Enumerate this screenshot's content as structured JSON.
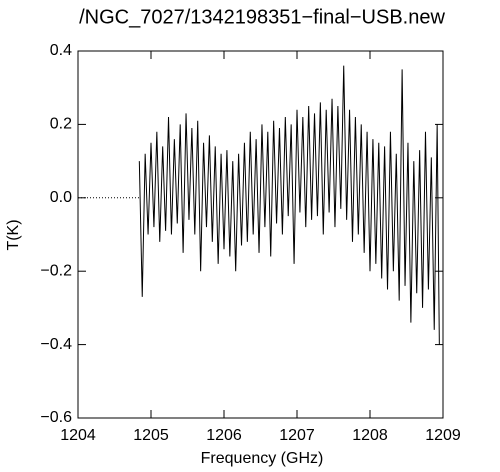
{
  "chart_data": {
    "type": "line",
    "title": "/NGC_7027/1342198351−final−USB.new",
    "x_label": "Frequency (GHz)",
    "y_label": "T(K)",
    "xlim": [
      1204,
      1209
    ],
    "ylim": [
      -0.6,
      0.4
    ],
    "xticks": [
      1204,
      1205,
      1206,
      1207,
      1208,
      1209
    ],
    "yticks": [
      {
        "value": -0.6,
        "label": "−0.6"
      },
      {
        "value": -0.4,
        "label": "−0.4"
      },
      {
        "value": -0.2,
        "label": "−0.2"
      },
      {
        "value": 0,
        "label": "0.0"
      },
      0.2,
      0.4
    ],
    "series": [
      {
        "color": "#000000",
        "style": "solid",
        "x": [
          1204.84,
          1204.88,
          1204.92,
          1204.96,
          1205.0,
          1205.04,
          1205.08,
          1205.12,
          1205.16,
          1205.2,
          1205.24,
          1205.28,
          1205.32,
          1205.36,
          1205.4,
          1205.44,
          1205.48,
          1205.52,
          1205.56,
          1205.6,
          1205.64,
          1205.68,
          1205.72,
          1205.76,
          1205.8,
          1205.84,
          1205.88,
          1205.92,
          1205.96,
          1206.0,
          1206.04,
          1206.08,
          1206.12,
          1206.16,
          1206.2,
          1206.24,
          1206.28,
          1206.32,
          1206.36,
          1206.4,
          1206.44,
          1206.48,
          1206.52,
          1206.56,
          1206.6,
          1206.64,
          1206.68,
          1206.72,
          1206.76,
          1206.8,
          1206.84,
          1206.88,
          1206.92,
          1206.96,
          1207.0,
          1207.04,
          1207.08,
          1207.12,
          1207.16,
          1207.2,
          1207.24,
          1207.28,
          1207.32,
          1207.36,
          1207.4,
          1207.44,
          1207.48,
          1207.52,
          1207.56,
          1207.6,
          1207.64,
          1207.68,
          1207.72,
          1207.76,
          1207.8,
          1207.84,
          1207.88,
          1207.92,
          1207.96,
          1208.0,
          1208.04,
          1208.08,
          1208.12,
          1208.16,
          1208.2,
          1208.24,
          1208.28,
          1208.32,
          1208.36,
          1208.4,
          1208.44,
          1208.48,
          1208.52,
          1208.56,
          1208.6,
          1208.64,
          1208.68,
          1208.72,
          1208.76,
          1208.8,
          1208.84,
          1208.88,
          1208.92,
          1208.95
        ],
        "values": [
          0.1,
          -0.27,
          0.12,
          -0.1,
          0.15,
          -0.08,
          0.18,
          -0.12,
          0.14,
          -0.09,
          0.22,
          -0.1,
          0.16,
          -0.07,
          0.2,
          -0.15,
          0.23,
          -0.06,
          0.19,
          -0.1,
          0.21,
          -0.2,
          0.15,
          -0.08,
          0.17,
          -0.12,
          0.14,
          -0.18,
          0.12,
          -0.14,
          0.13,
          -0.16,
          0.1,
          -0.2,
          0.12,
          -0.13,
          0.15,
          -0.12,
          0.18,
          -0.1,
          0.16,
          -0.15,
          0.2,
          -0.08,
          0.18,
          -0.16,
          0.21,
          -0.07,
          0.19,
          -0.1,
          0.22,
          -0.05,
          0.2,
          -0.18,
          0.24,
          -0.04,
          0.22,
          -0.08,
          0.25,
          -0.06,
          0.23,
          -0.05,
          0.26,
          -0.1,
          0.24,
          -0.04,
          0.27,
          -0.08,
          0.25,
          -0.03,
          0.36,
          -0.06,
          0.24,
          -0.12,
          0.22,
          -0.1,
          0.2,
          -0.15,
          0.18,
          -0.2,
          0.16,
          -0.18,
          0.15,
          -0.22,
          0.14,
          -0.25,
          0.18,
          -0.2,
          0.12,
          -0.28,
          0.35,
          -0.24,
          0.15,
          -0.34,
          0.1,
          -0.26,
          0.13,
          -0.3,
          0.18,
          -0.25,
          0.11,
          -0.36,
          0.2,
          -0.4
        ]
      },
      {
        "color": "#000000",
        "style": "dotted",
        "x": [
          1204,
          1204.84
        ],
        "values": [
          0,
          0
        ]
      }
    ]
  }
}
